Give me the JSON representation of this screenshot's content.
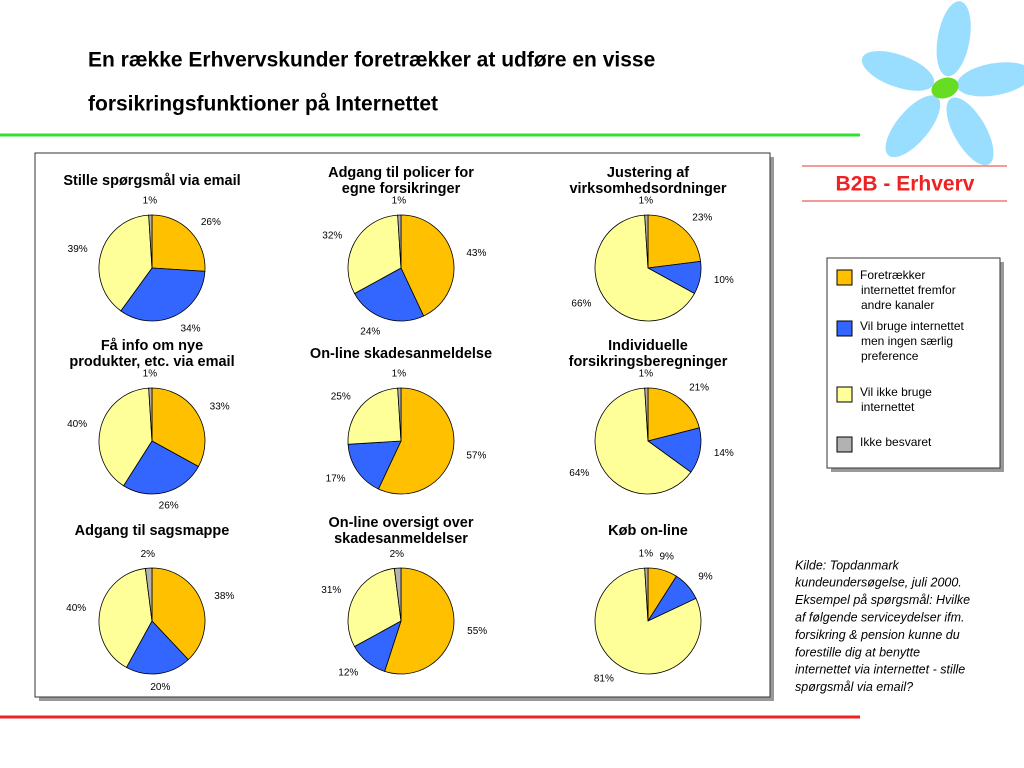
{
  "header": {
    "title": [
      "En række Erhvervskunder foretrækker at udføre en visse",
      "forsikringsfunktioner på Internettet"
    ]
  },
  "tag": "B2B - Erhverv",
  "legend": {
    "labels": [
      [
        "Foretrækker",
        "internettet fremfor",
        "andre kanaler"
      ],
      [
        "Vil bruge internettet",
        "men ingen særlig",
        "preference"
      ],
      [
        "Vil ikke bruge",
        "internettet"
      ],
      [
        "Ikke besvaret"
      ]
    ],
    "colors": [
      "#FFC000",
      "#3366FF",
      "#FFFF99",
      "#B2B2B2"
    ]
  },
  "source": [
    "Kilde: Topdanmark",
    "kundeundersøgelse, juli 2000.",
    "Eksempel på spørgsmål: Hvilke",
    "af følgende serviceydelser ifm.",
    "forsikring & pension kunne du",
    "forestille dig at benytte",
    "internettet via internettet - stille",
    "spørgsmål via email?"
  ],
  "chart_data": [
    {
      "type": "pie",
      "title": [
        "Stille spørgsmål via email"
      ],
      "values": [
        26,
        34,
        39,
        1
      ],
      "value_labels": [
        "26%",
        "34%",
        "39%",
        "1%"
      ]
    },
    {
      "type": "pie",
      "title": [
        "Adgang til policer for",
        "egne forsikringer"
      ],
      "values": [
        43,
        24,
        32,
        1
      ],
      "value_labels": [
        "43%",
        "24%",
        "32%",
        "1%"
      ]
    },
    {
      "type": "pie",
      "title": [
        "Justering af",
        "virksomhedsordninger"
      ],
      "values": [
        23,
        10,
        66,
        1
      ],
      "value_labels": [
        "23%",
        "10%",
        "66%",
        "1%"
      ]
    },
    {
      "type": "pie",
      "title": [
        "Få info om nye",
        "produkter, etc. via email"
      ],
      "values": [
        33,
        26,
        40,
        1
      ],
      "value_labels": [
        "33%",
        "26%",
        "40%",
        "1%"
      ]
    },
    {
      "type": "pie",
      "title": [
        "On-line skadesanmeldelse"
      ],
      "values": [
        57,
        17,
        25,
        1
      ],
      "value_labels": [
        "57%",
        "17%",
        "25%",
        "1%"
      ]
    },
    {
      "type": "pie",
      "title": [
        "Individuelle",
        "forsikringsberegninger"
      ],
      "values": [
        21,
        14,
        64,
        1
      ],
      "value_labels": [
        "21%",
        "14%",
        "64%",
        "1%"
      ]
    },
    {
      "type": "pie",
      "title": [
        "Adgang til sagsmappe"
      ],
      "values": [
        38,
        20,
        40,
        2
      ],
      "value_labels": [
        "38%",
        "20%",
        "40%",
        "2%"
      ]
    },
    {
      "type": "pie",
      "title": [
        "On-line oversigt over",
        "skadesanmeldelser"
      ],
      "values": [
        55,
        12,
        31,
        2
      ],
      "value_labels": [
        "55%",
        "12%",
        "31%",
        "2%"
      ]
    },
    {
      "type": "pie",
      "title": [
        "Køb on-line"
      ],
      "values": [
        9,
        9,
        81,
        1
      ],
      "value_labels": [
        "9%",
        "9%",
        "81%",
        "1%"
      ]
    }
  ]
}
